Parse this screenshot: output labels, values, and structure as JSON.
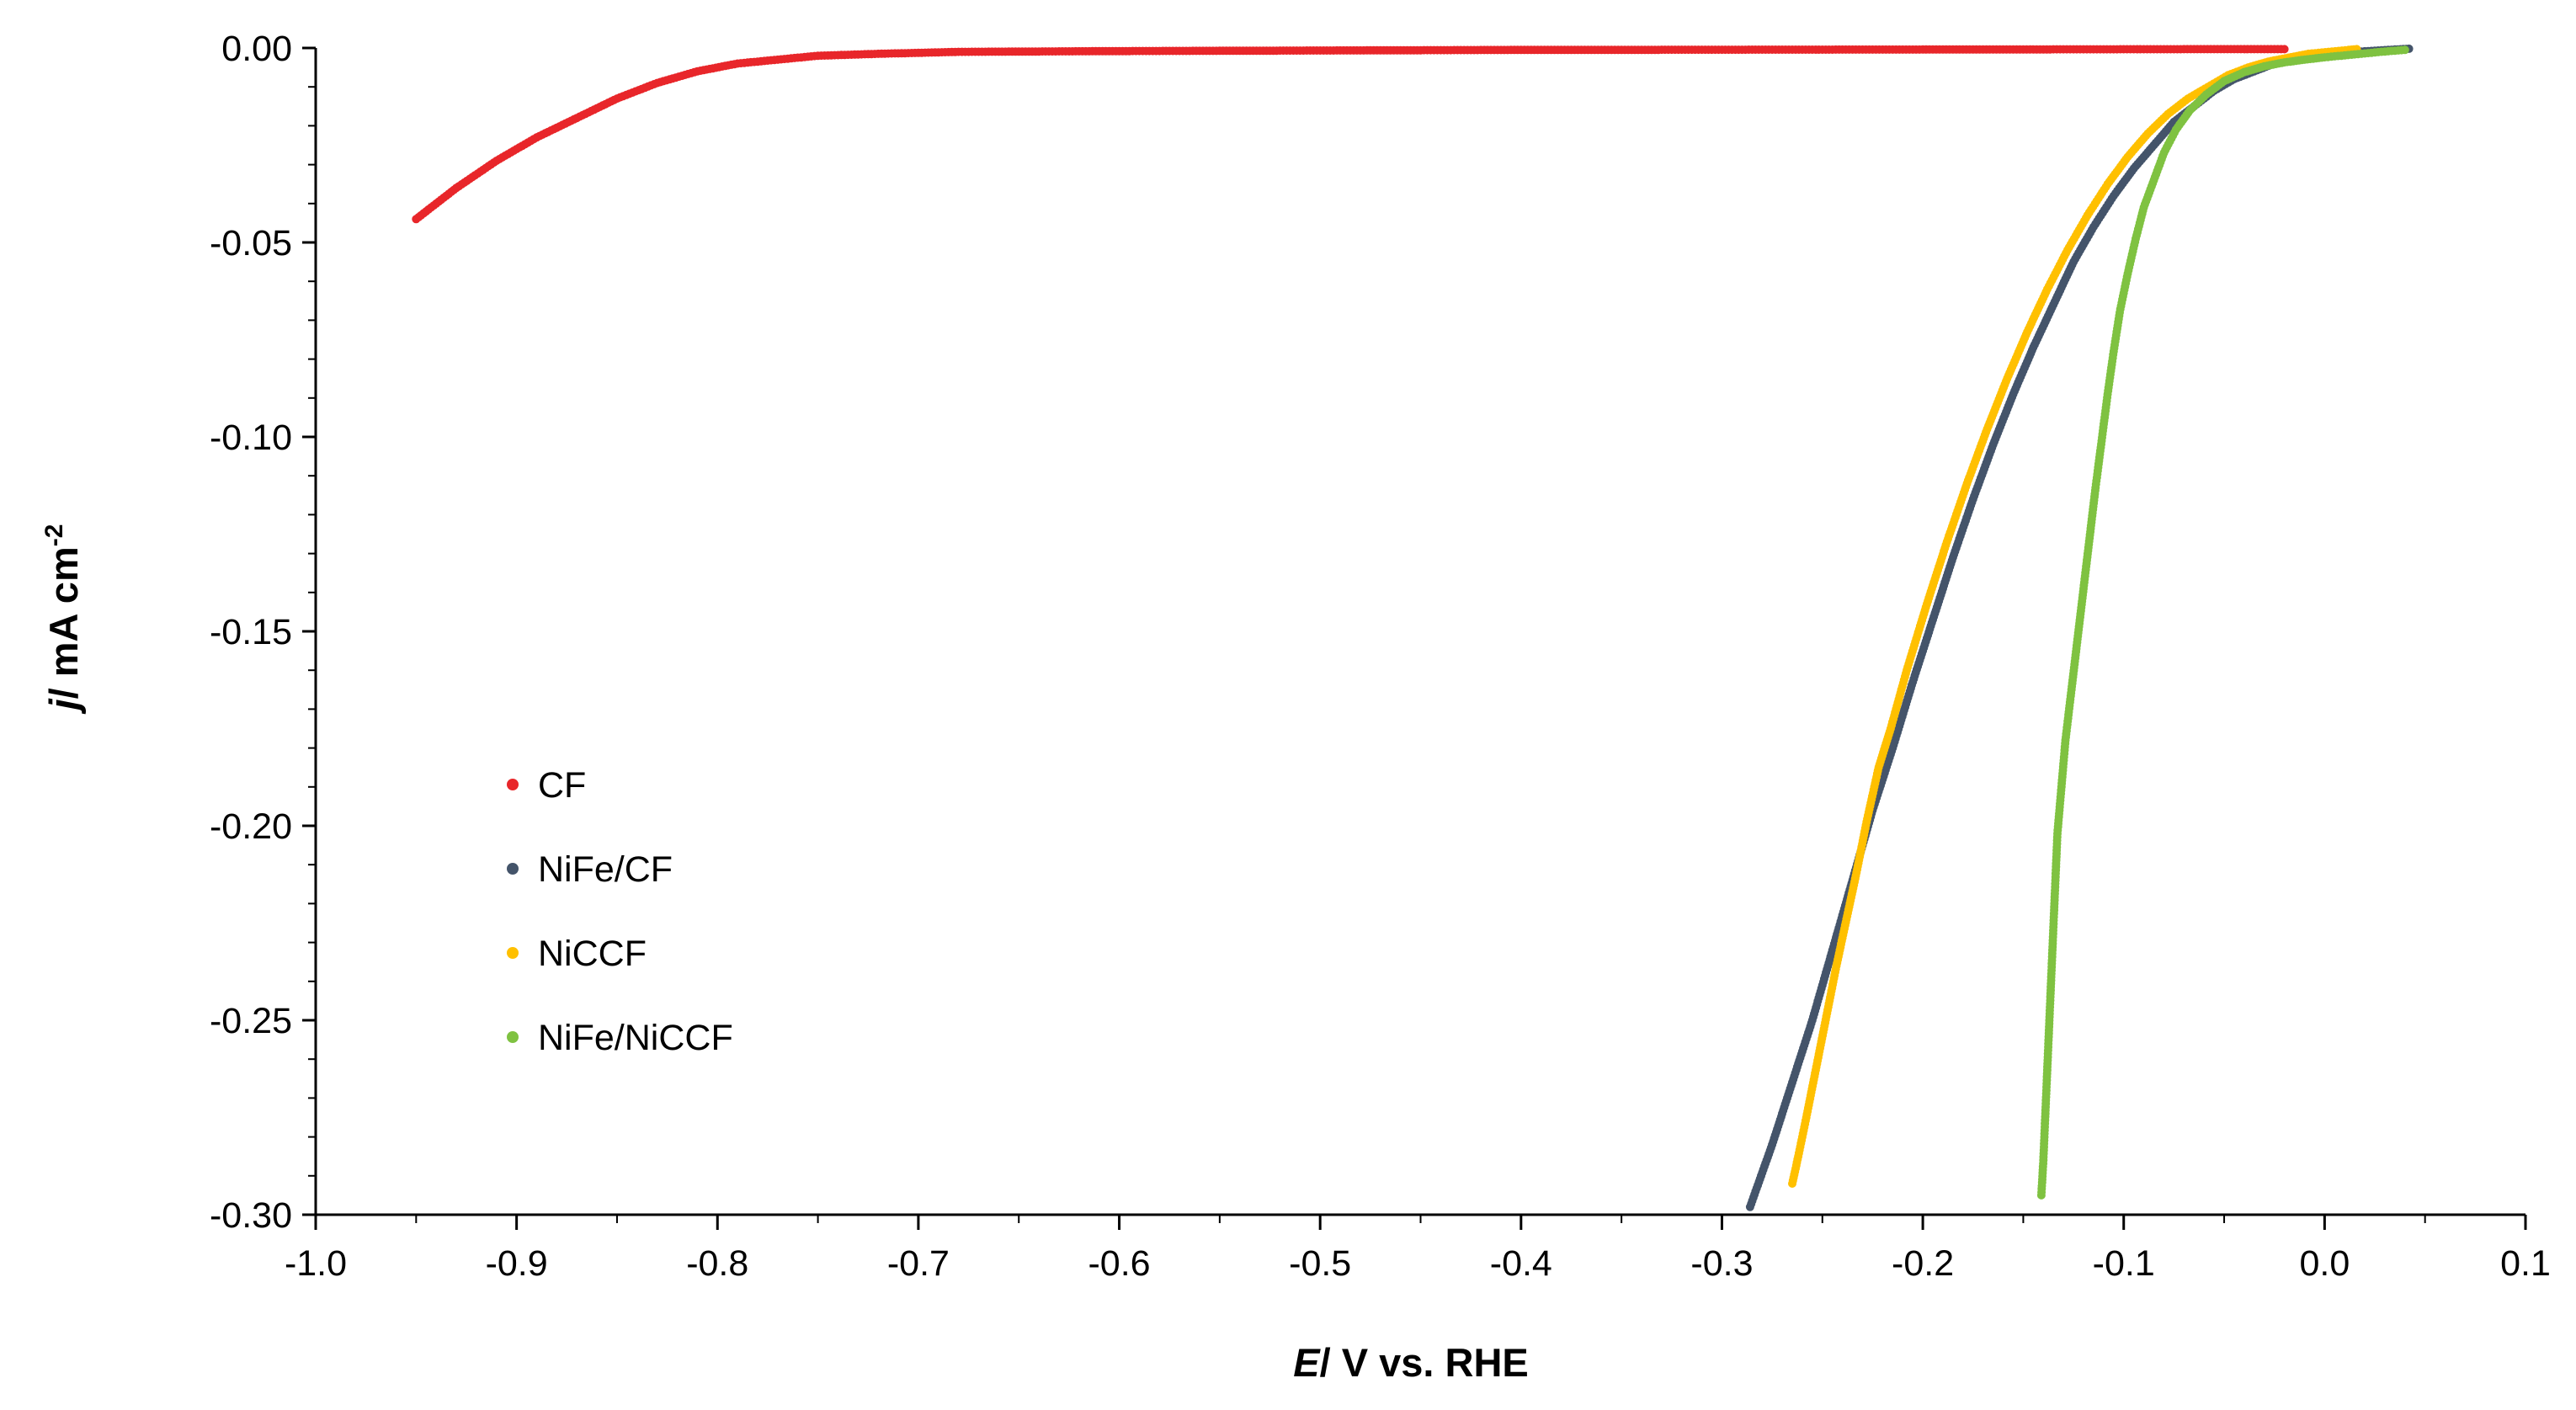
{
  "chart_data": {
    "type": "scatter",
    "title": "",
    "xlabel_italic": "E",
    "xlabel_rest": "/ V vs. RHE",
    "ylabel_italic": "j",
    "ylabel_rest": "/ mA cm",
    "ylabel_sup": "-2",
    "xlim": [
      -1.0,
      0.1
    ],
    "ylim": [
      -0.3,
      0.0
    ],
    "x_ticks": [
      "-1.0",
      "-0.9",
      "-0.8",
      "-0.7",
      "-0.6",
      "-0.5",
      "-0.4",
      "-0.3",
      "-0.2",
      "-0.1",
      "0.0",
      "0.1"
    ],
    "y_ticks": [
      "0.00",
      "-0.05",
      "-0.10",
      "-0.15",
      "-0.20",
      "-0.25",
      "-0.30"
    ],
    "legend_position": "center-left",
    "series": [
      {
        "name": "CF",
        "color": "#e8262a",
        "x": [
          -0.95,
          -0.93,
          -0.91,
          -0.89,
          -0.87,
          -0.85,
          -0.83,
          -0.81,
          -0.79,
          -0.77,
          -0.75,
          -0.72,
          -0.68,
          -0.6,
          -0.4,
          -0.2,
          -0.05,
          -0.02
        ],
        "y": [
          -0.044,
          -0.036,
          -0.029,
          -0.023,
          -0.018,
          -0.013,
          -0.009,
          -0.006,
          -0.004,
          -0.003,
          -0.002,
          -0.0015,
          -0.001,
          -0.0008,
          -0.0005,
          -0.0004,
          -0.0003,
          -0.0003
        ]
      },
      {
        "name": "NiFe/CF",
        "color": "#44546a",
        "x": [
          -0.286,
          -0.275,
          -0.265,
          -0.255,
          -0.245,
          -0.235,
          -0.225,
          -0.215,
          -0.205,
          -0.195,
          -0.185,
          -0.175,
          -0.165,
          -0.155,
          -0.145,
          -0.135,
          -0.125,
          -0.115,
          -0.105,
          -0.095,
          -0.085,
          -0.075,
          -0.065,
          -0.055,
          -0.045,
          -0.035,
          -0.025,
          -0.015,
          -0.005,
          0.005,
          0.015,
          0.025,
          0.035,
          0.042
        ],
        "y": [
          -0.298,
          -0.282,
          -0.266,
          -0.25,
          -0.232,
          -0.214,
          -0.196,
          -0.18,
          -0.163,
          -0.147,
          -0.131,
          -0.116,
          -0.102,
          -0.089,
          -0.077,
          -0.066,
          -0.055,
          -0.046,
          -0.038,
          -0.031,
          -0.025,
          -0.019,
          -0.015,
          -0.011,
          -0.008,
          -0.006,
          -0.004,
          -0.003,
          -0.002,
          -0.0015,
          -0.001,
          -0.0007,
          -0.0004,
          -0.0002
        ]
      },
      {
        "name": "NiCCF",
        "color": "#ffc000",
        "x": [
          -0.265,
          -0.262,
          -0.258,
          -0.253,
          -0.248,
          -0.243,
          -0.238,
          -0.233,
          -0.228,
          -0.222,
          -0.216,
          -0.208,
          -0.198,
          -0.188,
          -0.178,
          -0.168,
          -0.158,
          -0.148,
          -0.138,
          -0.128,
          -0.118,
          -0.108,
          -0.098,
          -0.088,
          -0.078,
          -0.068,
          -0.058,
          -0.048,
          -0.038,
          -0.028,
          -0.018,
          -0.008,
          0.002,
          0.012,
          0.016
        ],
        "y": [
          -0.292,
          -0.285,
          -0.275,
          -0.262,
          -0.249,
          -0.236,
          -0.224,
          -0.212,
          -0.199,
          -0.185,
          -0.175,
          -0.16,
          -0.143,
          -0.127,
          -0.112,
          -0.098,
          -0.085,
          -0.073,
          -0.062,
          -0.052,
          -0.043,
          -0.035,
          -0.028,
          -0.022,
          -0.017,
          -0.013,
          -0.01,
          -0.007,
          -0.005,
          -0.0035,
          -0.0025,
          -0.0015,
          -0.001,
          -0.0005,
          -0.0003
        ]
      },
      {
        "name": "NiFe/NiCCF",
        "color": "#7fc241",
        "x": [
          -0.141,
          -0.14,
          -0.139,
          -0.138,
          -0.137,
          -0.136,
          -0.135,
          -0.134,
          -0.133,
          -0.131,
          -0.129,
          -0.126,
          -0.123,
          -0.12,
          -0.117,
          -0.114,
          -0.111,
          -0.108,
          -0.105,
          -0.102,
          -0.098,
          -0.094,
          -0.09,
          -0.085,
          -0.08,
          -0.074,
          -0.067,
          -0.059,
          -0.05,
          -0.04,
          -0.03,
          -0.02,
          -0.01,
          0.0,
          0.01,
          0.02,
          0.03,
          0.04
        ],
        "y": [
          -0.295,
          -0.286,
          -0.274,
          -0.262,
          -0.25,
          -0.238,
          -0.226,
          -0.214,
          -0.202,
          -0.19,
          -0.178,
          -0.165,
          -0.152,
          -0.139,
          -0.126,
          -0.113,
          -0.101,
          -0.089,
          -0.078,
          -0.068,
          -0.058,
          -0.049,
          -0.041,
          -0.034,
          -0.027,
          -0.021,
          -0.016,
          -0.012,
          -0.0085,
          -0.0062,
          -0.0047,
          -0.0037,
          -0.003,
          -0.0024,
          -0.0019,
          -0.0014,
          -0.0009,
          -0.0005
        ]
      }
    ]
  }
}
